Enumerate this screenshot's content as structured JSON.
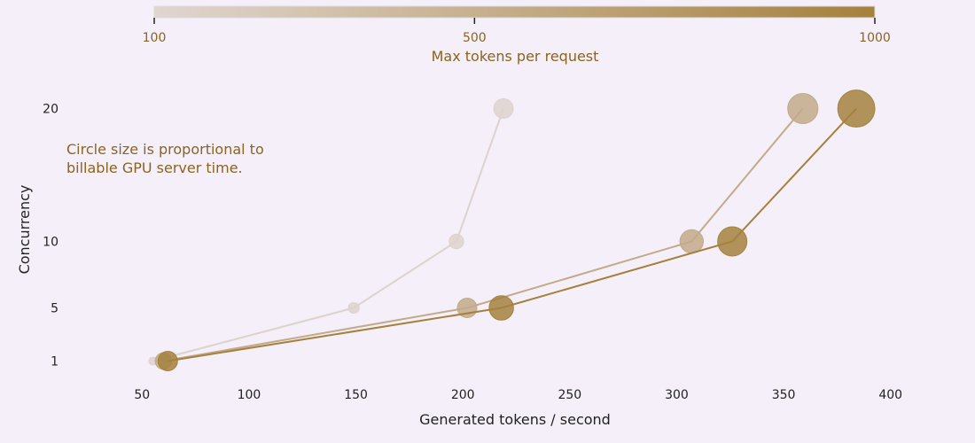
{
  "chart_data": {
    "type": "scatter",
    "xlabel": "Generated tokens / second",
    "ylabel": "Concurrency",
    "xticks": [
      50,
      100,
      150,
      200,
      250,
      300,
      350,
      400
    ],
    "yticks": [
      1,
      5,
      10,
      20
    ],
    "xlim": [
      25,
      425
    ],
    "ylim": [
      -1.5,
      22.5
    ],
    "annotation": "Circle size is proportional to\nbillable GPU server time.",
    "colorbar": {
      "label": "Max tokens per request",
      "ticks": [
        100,
        500,
        1000
      ],
      "range": [
        100,
        1000
      ],
      "color_low": "#e0d6d0",
      "color_high": "#a5813e"
    },
    "series": [
      {
        "max_tokens": 100,
        "color": "#ddd2cc",
        "points": [
          {
            "x": 55,
            "y": 1,
            "size": 0.4
          },
          {
            "x": 149,
            "y": 5,
            "size": 0.55
          },
          {
            "x": 197,
            "y": 10,
            "size": 0.75
          },
          {
            "x": 219,
            "y": 20,
            "size": 1.0
          }
        ]
      },
      {
        "max_tokens": 500,
        "color": "#c2aa8a",
        "points": [
          {
            "x": 60,
            "y": 1,
            "size": 0.85
          },
          {
            "x": 202,
            "y": 5,
            "size": 1.0
          },
          {
            "x": 307,
            "y": 10,
            "size": 1.2
          },
          {
            "x": 359,
            "y": 20,
            "size": 1.55
          }
        ]
      },
      {
        "max_tokens": 1000,
        "color": "#a5813e",
        "points": [
          {
            "x": 62,
            "y": 1,
            "size": 1.0
          },
          {
            "x": 218,
            "y": 5,
            "size": 1.25
          },
          {
            "x": 326,
            "y": 10,
            "size": 1.5
          },
          {
            "x": 384,
            "y": 20,
            "size": 1.9
          }
        ]
      }
    ]
  }
}
